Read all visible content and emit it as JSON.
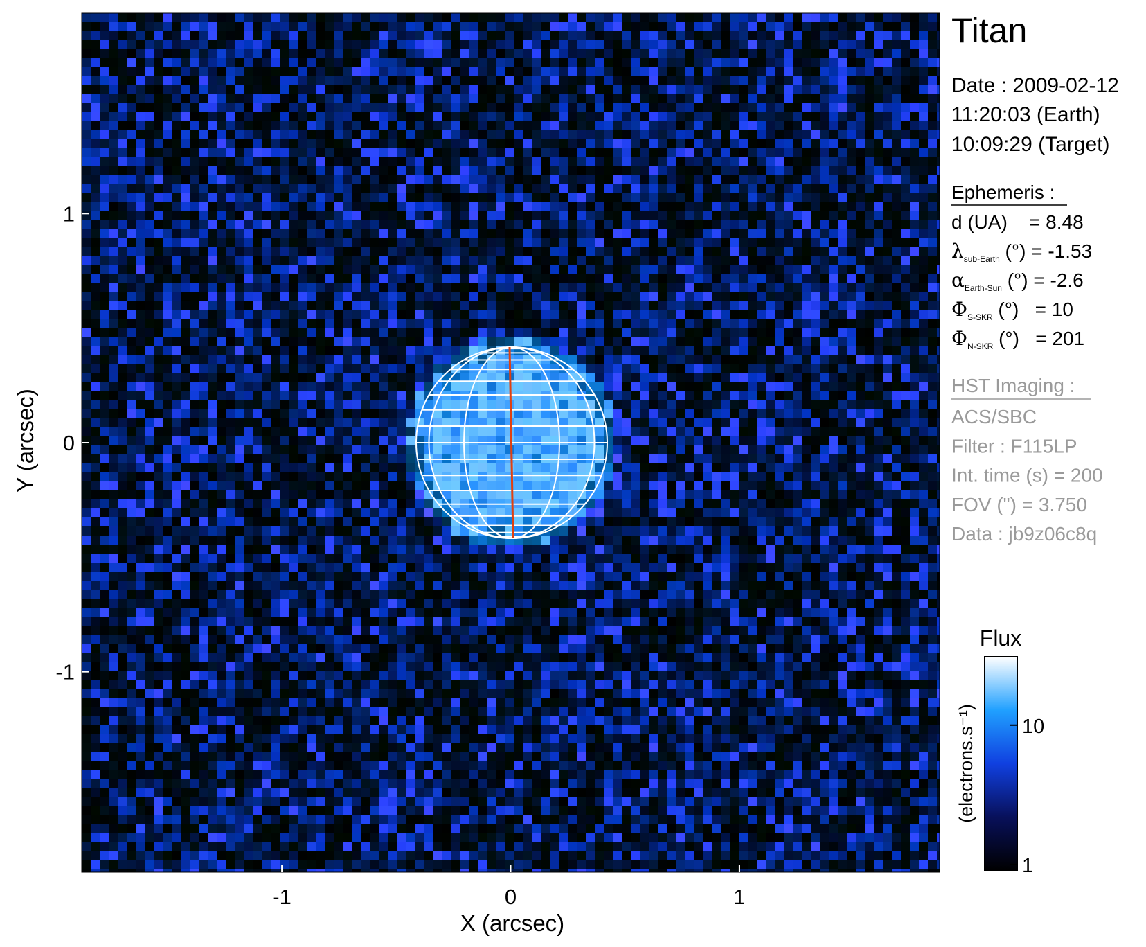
{
  "chart_data": {
    "type": "image",
    "xlabel": "X (arcsec)",
    "ylabel": "Y (arcsec)",
    "xlim": [
      -1.875,
      1.875
    ],
    "ylim": [
      -1.875,
      1.875
    ],
    "xticks": [
      -1,
      0,
      1
    ],
    "yticks": [
      -1,
      0,
      1
    ],
    "colorbar": {
      "title": "Flux",
      "label": "(electrons.s⁻¹)",
      "log": true,
      "lim": [
        0.9,
        31
      ],
      "ticks": [
        1,
        10
      ],
      "colors": [
        "#000000",
        "#08105a",
        "#1040e0",
        "#20a0ff",
        "#ffffff"
      ]
    }
  },
  "panel": {
    "target": "Titan",
    "date_lines": [
      "Date : 2009-02-12",
      "11:20:03 (Earth)",
      "10:09:29 (Target)"
    ],
    "ephemeris_heading": "Ephemeris :",
    "ephemeris": [
      {
        "symbol": "d (UA)",
        "subscript": null,
        "text": "    = 8.48"
      },
      {
        "symbol": "λ",
        "subscript": "sub-Earth",
        "text": " (°) = -1.53"
      },
      {
        "symbol": "α",
        "subscript": "Earth-Sun",
        "text": " (°) = -2.6"
      },
      {
        "symbol": "Φ",
        "subscript": "S-SKR",
        "text": " (°)   = 10"
      },
      {
        "symbol": "Φ",
        "subscript": "N-SKR",
        "text": " (°)   = 201"
      }
    ],
    "imaging_heading": "HST Imaging :",
    "imaging": [
      "ACS/SBC",
      "Filter : F115LP",
      "Int. time (s) = 200",
      "FOV (\") = 3.750",
      "Data : jb9z06c8q"
    ]
  }
}
